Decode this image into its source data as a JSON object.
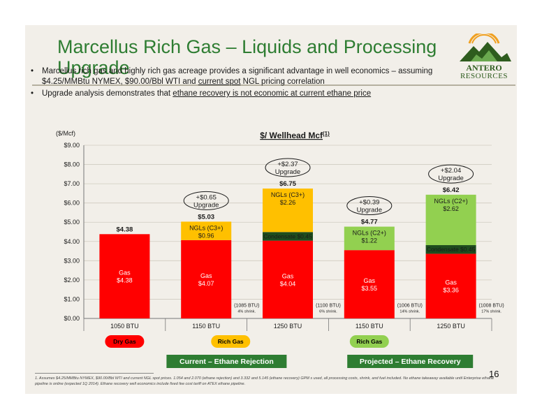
{
  "slide": {
    "title_line1": "Marcellus Rich Gas – Liquids and Processing",
    "title_line2": "Upgrade",
    "logo_line1": "ANTERO",
    "logo_line2": "RESOURCES",
    "page_number": "16"
  },
  "bullets": [
    {
      "pre": "Marcellus rich gas and highly rich gas acreage provides a significant advantage in well economics – assuming $4.25/MMBtu NYMEX, $90.00/Bbl WTI and ",
      "u": "current spot",
      "post": " NGL pricing correlation"
    },
    {
      "pre": "Upgrade analysis demonstrates that ",
      "u": "ethane recovery is not economic at current ethane price",
      "post": ""
    }
  ],
  "footnote": "1.   Assumes $4.25/MMBtu NYMEX, $90.00/Bbl WTI and current NGL spot prices.  1.054 and 2.070 (ethane rejection) and 3.332 and 5.145 (ethane recovery) GPM s used, all processing costs, shrink, and fuel included. No ethane takeaway available until Enterprise ethane pipeline is online (expected 1Q 2014). Ethane recovery well economics include fixed fee cost tariff on ATEX ethane pipeline.",
  "chart_data": {
    "type": "bar",
    "stacked": true,
    "title": "$/ Wellhead Mcf",
    "title_superscript": "(1)",
    "ylabel": "($/Mcf)",
    "ylim": [
      0,
      9
    ],
    "yticks": [
      "$0.00",
      "$1.00",
      "$2.00",
      "$3.00",
      "$4.00",
      "$5.00",
      "$6.00",
      "$7.00",
      "$8.00",
      "$9.00"
    ],
    "grid": true,
    "categories": [
      "1050 BTU",
      "1150 BTU",
      "1250 BTU",
      "1150 BTU",
      "1250 BTU"
    ],
    "bars": [
      {
        "total": 4.38,
        "total_label": "$4.38",
        "segments": [
          {
            "kind": "gas",
            "value": 4.38,
            "label_line1": "Gas",
            "label_line2": "$4.38"
          }
        ]
      },
      {
        "total": 5.03,
        "total_label": "$5.03",
        "upgrade": [
          "+$0.65",
          "Upgrade"
        ],
        "shrink": [
          "(1085 BTU)",
          "4% shrink."
        ],
        "segments": [
          {
            "kind": "gas",
            "value": 4.07,
            "label_line1": "Gas",
            "label_line2": "$4.07"
          },
          {
            "kind": "ngl_c3",
            "value": 0.96,
            "label_line1": "NGLs (C3+)",
            "label_line2": "$0.96"
          }
        ]
      },
      {
        "total": 6.75,
        "total_label": "$6.75",
        "upgrade": [
          "+$2.37",
          "Upgrade"
        ],
        "shrink": [
          "(1100 BTU)",
          "6% shrink."
        ],
        "segments": [
          {
            "kind": "gas",
            "value": 4.04,
            "label_line1": "Gas",
            "label_line2": "$4.04"
          },
          {
            "kind": "condensate",
            "value": 0.45,
            "label_line1": "Condensate $0.45",
            "label_line2": ""
          },
          {
            "kind": "ngl_c3",
            "value": 2.26,
            "label_line1": "NGLs (C3+)",
            "label_line2": "$2.26"
          }
        ]
      },
      {
        "total": 4.77,
        "total_label": "$4.77",
        "upgrade": [
          "+$0.39",
          "Upgrade"
        ],
        "shrink": [
          "(1006 BTU)",
          "14% shrink."
        ],
        "segments": [
          {
            "kind": "gas",
            "value": 3.55,
            "label_line1": "Gas",
            "label_line2": "$3.55"
          },
          {
            "kind": "ngl_c2",
            "value": 1.22,
            "label_line1": "NGLs (C2+)",
            "label_line2": "$1.22"
          }
        ]
      },
      {
        "total": 6.42,
        "total_label": "$6.42",
        "upgrade": [
          "+$2.04",
          "Upgrade"
        ],
        "shrink": [
          "(1008 BTU)",
          "17% shrink."
        ],
        "segments": [
          {
            "kind": "gas",
            "value": 3.36,
            "label_line1": "Gas",
            "label_line2": "$3.36"
          },
          {
            "kind": "condensate",
            "value": 0.45,
            "label_line1": "Condensate $0.45",
            "label_line2": ""
          },
          {
            "kind": "ngl_c2",
            "value": 2.62,
            "label_line1": "NGLs (C2+)",
            "label_line2": "$2.62"
          }
        ]
      }
    ],
    "colors": {
      "gas": "#ff0000",
      "ngl_c3": "#ffc000",
      "ngl_c2": "#92d050",
      "condensate": "#1e4d1e"
    },
    "group_labels": [
      {
        "text": "Dry Gas",
        "color": "#ff0000",
        "text_color": "#000000"
      },
      {
        "text": "Rich Gas",
        "color": "#ffc000",
        "text_color": "#000000"
      },
      {
        "text": "Rich Gas",
        "color": "#92d050",
        "text_color": "#000000"
      }
    ],
    "scenario_labels": [
      {
        "text": "Current – Ethane Rejection",
        "color": "#2e7d32"
      },
      {
        "text": "Projected – Ethane Recovery",
        "color": "#2e7d32"
      }
    ]
  }
}
